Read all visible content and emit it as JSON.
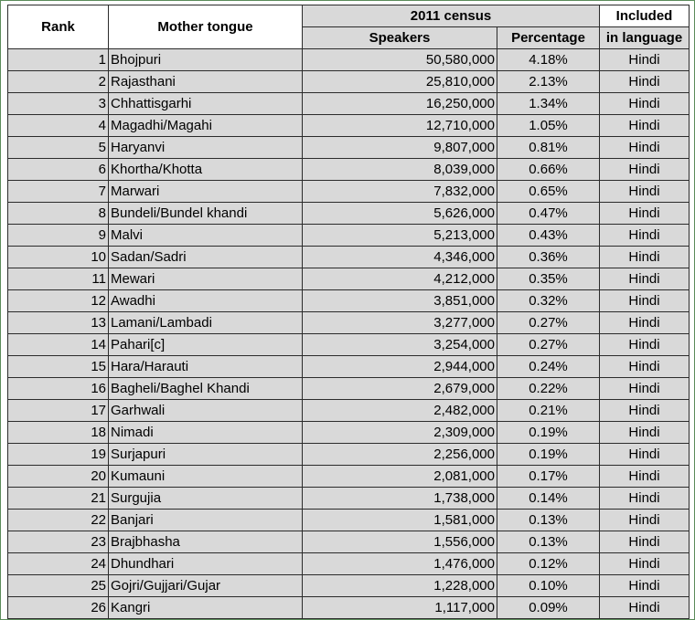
{
  "headers": {
    "rank": "Rank",
    "mother_tongue": "Mother tongue",
    "census": "2011 census",
    "speakers": "Speakers",
    "percentage": "Percentage",
    "included_line1": "Included",
    "included_line2": "in language"
  },
  "rows": [
    {
      "rank": "1",
      "tongue": "Bhojpuri",
      "speakers": "50,580,000",
      "pct": "4.18%",
      "lang": "Hindi"
    },
    {
      "rank": "2",
      "tongue": "Rajasthani",
      "speakers": "25,810,000",
      "pct": "2.13%",
      "lang": "Hindi"
    },
    {
      "rank": "3",
      "tongue": "Chhattisgarhi",
      "speakers": "16,250,000",
      "pct": "1.34%",
      "lang": "Hindi"
    },
    {
      "rank": "4",
      "tongue": "Magadhi/Magahi",
      "speakers": "12,710,000",
      "pct": "1.05%",
      "lang": "Hindi"
    },
    {
      "rank": "5",
      "tongue": "Haryanvi",
      "speakers": "9,807,000",
      "pct": "0.81%",
      "lang": "Hindi"
    },
    {
      "rank": "6",
      "tongue": "Khortha/Khotta",
      "speakers": "8,039,000",
      "pct": "0.66%",
      "lang": "Hindi"
    },
    {
      "rank": "7",
      "tongue": "Marwari",
      "speakers": "7,832,000",
      "pct": "0.65%",
      "lang": "Hindi"
    },
    {
      "rank": "8",
      "tongue": "Bundeli/Bundel khandi",
      "speakers": "5,626,000",
      "pct": "0.47%",
      "lang": "Hindi"
    },
    {
      "rank": "9",
      "tongue": "Malvi",
      "speakers": "5,213,000",
      "pct": "0.43%",
      "lang": "Hindi"
    },
    {
      "rank": "10",
      "tongue": "Sadan/Sadri",
      "speakers": "4,346,000",
      "pct": "0.36%",
      "lang": "Hindi"
    },
    {
      "rank": "11",
      "tongue": "Mewari",
      "speakers": "4,212,000",
      "pct": "0.35%",
      "lang": "Hindi"
    },
    {
      "rank": "12",
      "tongue": "Awadhi",
      "speakers": "3,851,000",
      "pct": "0.32%",
      "lang": "Hindi"
    },
    {
      "rank": "13",
      "tongue": "Lamani/Lambadi",
      "speakers": "3,277,000",
      "pct": "0.27%",
      "lang": "Hindi"
    },
    {
      "rank": "14",
      "tongue": "Pahari[c]",
      "speakers": "3,254,000",
      "pct": "0.27%",
      "lang": "Hindi"
    },
    {
      "rank": "15",
      "tongue": "Hara/Harauti",
      "speakers": "2,944,000",
      "pct": "0.24%",
      "lang": "Hindi"
    },
    {
      "rank": "16",
      "tongue": "Bagheli/Baghel Khandi",
      "speakers": "2,679,000",
      "pct": "0.22%",
      "lang": "Hindi"
    },
    {
      "rank": "17",
      "tongue": "Garhwali",
      "speakers": "2,482,000",
      "pct": "0.21%",
      "lang": "Hindi"
    },
    {
      "rank": "18",
      "tongue": "Nimadi",
      "speakers": "2,309,000",
      "pct": "0.19%",
      "lang": "Hindi"
    },
    {
      "rank": "19",
      "tongue": "Surjapuri",
      "speakers": "2,256,000",
      "pct": "0.19%",
      "lang": "Hindi"
    },
    {
      "rank": "20",
      "tongue": "Kumauni",
      "speakers": "2,081,000",
      "pct": "0.17%",
      "lang": "Hindi"
    },
    {
      "rank": "21",
      "tongue": "Surgujia",
      "speakers": "1,738,000",
      "pct": "0.14%",
      "lang": "Hindi"
    },
    {
      "rank": "22",
      "tongue": "Banjari",
      "speakers": "1,581,000",
      "pct": "0.13%",
      "lang": "Hindi"
    },
    {
      "rank": "23",
      "tongue": "Brajbhasha",
      "speakers": "1,556,000",
      "pct": "0.13%",
      "lang": "Hindi"
    },
    {
      "rank": "24",
      "tongue": "Dhundhari",
      "speakers": "1,476,000",
      "pct": "0.12%",
      "lang": "Hindi"
    },
    {
      "rank": "25",
      "tongue": "Gojri/Gujjari/Gujar",
      "speakers": "1,228,000",
      "pct": "0.10%",
      "lang": "Hindi"
    },
    {
      "rank": "26",
      "tongue": "Kangri",
      "speakers": "1,117,000",
      "pct": "0.09%",
      "lang": "Hindi"
    }
  ],
  "colors": {
    "cell_fill": "#d9d9d9",
    "header_fill": "#ffffff",
    "border": "#2b2b2b",
    "sheet_border": "#5b8c5a"
  }
}
